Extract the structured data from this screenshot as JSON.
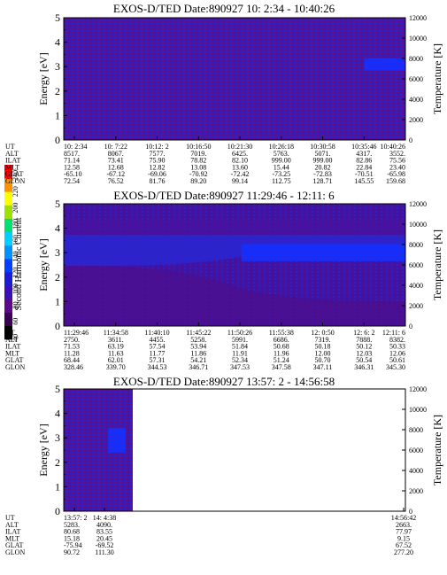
{
  "chart_data": {
    "type": "heatmap",
    "colorbar": {
      "label": "Second Harmonic Current",
      "ticks": [
        "40",
        "60",
        "80",
        "100",
        "120",
        "140",
        "160",
        "180",
        "200",
        "220",
        "240"
      ],
      "colors": [
        "#000000",
        "#3a0050",
        "#5a0a8a",
        "#3a10b8",
        "#1c1cd8",
        "#0040ff",
        "#0090ff",
        "#00d0ff",
        "#00e070",
        "#a0e000",
        "#ffff00",
        "#ff9000",
        "#ff0000"
      ]
    },
    "panels": [
      {
        "title": "EXOS-D/TED   Date:890927  10: 2:34 - 10:40:26",
        "ylabel": "Energy [eV]",
        "y2label": "Temperature [K]",
        "ylim": [
          0,
          5
        ],
        "y_ticks": [
          "0",
          "1",
          "2",
          "3",
          "4",
          "5"
        ],
        "y2lim": [
          0,
          12000
        ],
        "y2_ticks": [
          "0",
          "2000",
          "4000",
          "6000",
          "8000",
          "10000",
          "12000"
        ],
        "data_extent": [
          0,
          1
        ],
        "features": [
          {
            "x": [
              0.88,
              0.96
            ],
            "y": [
              2.85,
              3.35
            ],
            "level": "blue"
          },
          {
            "x": [
              0.955,
              1.0
            ],
            "y": [
              2.85,
              3.35
            ],
            "level": "blue"
          }
        ],
        "ephemeris_labels": [
          "UT",
          "ALT",
          "ILAT",
          "MLT",
          "GLAT",
          "GLON"
        ],
        "ephemeris": [
          [
            "10: 2:34",
            "8517.",
            "71.14",
            "12.58",
            "-65.10",
            "72.54"
          ],
          [
            "10: 7:22",
            "8067.",
            "73.41",
            "12.68",
            "-67.12",
            "76.52"
          ],
          [
            "10:12: 2",
            "7577.",
            "75.90",
            "12.82",
            "-69.06",
            "81.76"
          ],
          [
            "10:16:50",
            "7019.",
            "78.82",
            "13.08",
            "-70.92",
            "89.20"
          ],
          [
            "10:21:30",
            "6425.",
            "82.10",
            "13.60",
            "-72.42",
            "99.14"
          ],
          [
            "10:26:18",
            "5763.",
            "999.00",
            "15.44",
            "-73.25",
            "112.75"
          ],
          [
            "10:30:58",
            "5071.",
            "999.00",
            "20.82",
            "-72.83",
            "128.71"
          ],
          [
            "10:35:46",
            "4317.",
            "82.86",
            "22.84",
            "-70.51",
            "145.55"
          ],
          [
            "10:40:26",
            "3552.",
            "75.56",
            "23.40",
            "-65.98",
            "159.68"
          ]
        ]
      },
      {
        "title": "EXOS-D/TED   Date:890927  11:29:46 - 12:11: 6",
        "ylabel": "Energy [eV]",
        "y2label": "Temperature [K]",
        "ylim": [
          0,
          5
        ],
        "y_ticks": [
          "0",
          "1",
          "2",
          "3",
          "4",
          "5"
        ],
        "y2lim": [
          0,
          12000
        ],
        "y2_ticks": [
          "0",
          "2000",
          "4000",
          "6000",
          "8000",
          "10000",
          "12000"
        ],
        "data_extent": [
          0,
          1
        ],
        "features": [
          {
            "x": [
              0.52,
              1.0
            ],
            "y": [
              2.65,
              3.35
            ],
            "level": "blue"
          }
        ],
        "ephemeris_labels": [
          "UT",
          "ALT",
          "ILAT",
          "MLT",
          "GLAT",
          "GLON"
        ],
        "ephemeris": [
          [
            "11:29:46",
            "2750.",
            "71.53",
            "11.28",
            "68.44",
            "328.46"
          ],
          [
            "11:34:58",
            "3611.",
            "63.19",
            "11.63",
            "62.01",
            "339.70"
          ],
          [
            "11:40:10",
            "4455.",
            "57.54",
            "11.77",
            "57.31",
            "344.53"
          ],
          [
            "11:45:22",
            "5258.",
            "53.94",
            "11.86",
            "54.21",
            "346.71"
          ],
          [
            "11:50:26",
            "5991.",
            "51.84",
            "11.91",
            "52.34",
            "347.53"
          ],
          [
            "11:55:38",
            "6686.",
            "50.68",
            "11.96",
            "51.24",
            "347.58"
          ],
          [
            "12: 0:50",
            "7319.",
            "50.18",
            "12.00",
            "50.70",
            "347.11"
          ],
          [
            "12: 6: 2",
            "7888.",
            "50.12",
            "12.03",
            "50.54",
            "346.31"
          ],
          [
            "12:11: 6",
            "8382.",
            "50.33",
            "12.06",
            "50.61",
            "345.30"
          ]
        ]
      },
      {
        "title": "EXOS-D/TED   Date:890927  13:57: 2 - 14:56:58",
        "ylabel": "Energy [eV]",
        "y2label": "Temperature [K]",
        "ylim": [
          0,
          5
        ],
        "y_ticks": [
          "0",
          "1",
          "2",
          "3",
          "4",
          "5"
        ],
        "y2lim": [
          0,
          12000
        ],
        "y2_ticks": [
          "0",
          "2000",
          "4000",
          "6000",
          "8000",
          "10000",
          "12000"
        ],
        "data_extent": [
          0,
          0.18
        ],
        "features": [
          {
            "x": [
              0.13,
              0.18
            ],
            "y": [
              2.4,
              3.4
            ],
            "level": "blue"
          }
        ],
        "ephemeris_labels": [
          "UT",
          "ALT",
          "ILAT",
          "MLT",
          "GLAT",
          "GLON"
        ],
        "ephemeris": [
          [
            "13:57: 2",
            "5283.",
            "80.68",
            "15.18",
            "-75.94",
            "90.72"
          ],
          [
            "14: 4:38",
            "4090.",
            "83.55",
            "20.45",
            "-69.52",
            "111.30"
          ],
          [
            "14:56:42",
            "2663.",
            "77.97",
            "9.15",
            "67.52",
            "277.20"
          ]
        ]
      }
    ]
  }
}
